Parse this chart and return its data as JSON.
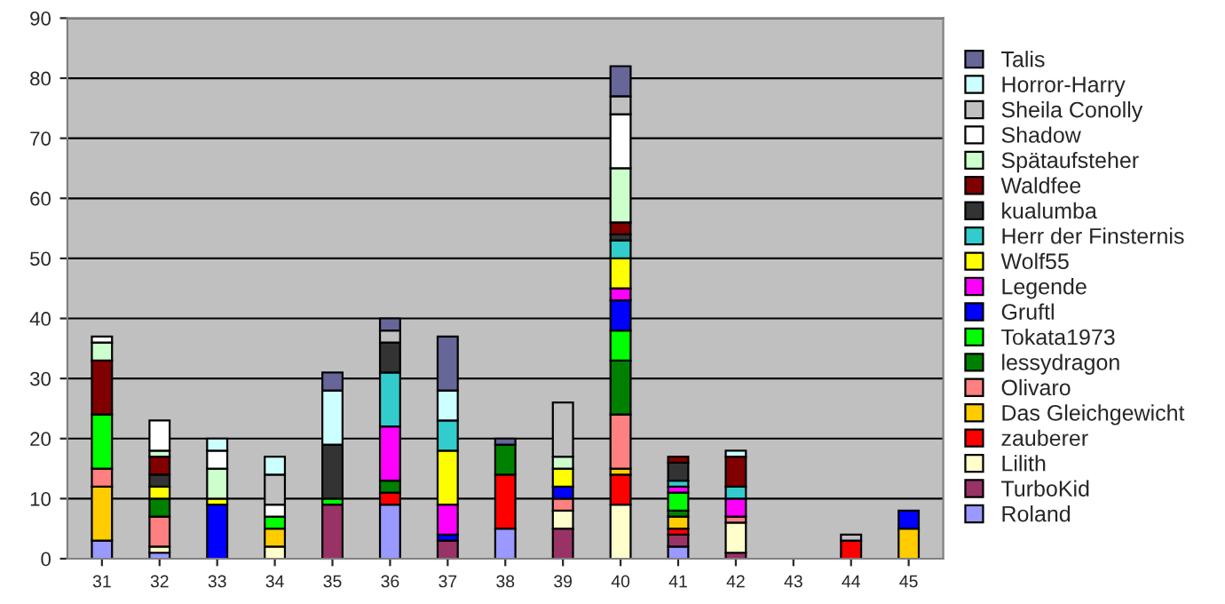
{
  "chart_data": {
    "type": "bar",
    "stacked": true,
    "categories": [
      "31",
      "32",
      "33",
      "34",
      "35",
      "36",
      "37",
      "38",
      "39",
      "40",
      "41",
      "42",
      "43",
      "44",
      "45"
    ],
    "ylim": [
      0,
      90
    ],
    "yticks": [
      0,
      10,
      20,
      30,
      40,
      50,
      60,
      70,
      80,
      90
    ],
    "grid": "y",
    "legend": "right",
    "series": [
      {
        "name": "Roland",
        "color": "#9999ff",
        "values": [
          3,
          1,
          null,
          null,
          null,
          9,
          null,
          5,
          null,
          null,
          2,
          null,
          null,
          null,
          null
        ]
      },
      {
        "name": "TurboKid",
        "color": "#993366",
        "values": [
          null,
          null,
          null,
          null,
          9,
          null,
          3,
          null,
          5,
          null,
          2,
          1,
          null,
          null,
          null
        ]
      },
      {
        "name": "Lilith",
        "color": "#ffffcc",
        "values": [
          null,
          1,
          null,
          2,
          null,
          null,
          null,
          null,
          3,
          9,
          null,
          5,
          null,
          null,
          null
        ]
      },
      {
        "name": "zauberer",
        "color": "#ff0000",
        "values": [
          null,
          null,
          null,
          null,
          null,
          2,
          null,
          9,
          null,
          5,
          1,
          null,
          null,
          3,
          null
        ]
      },
      {
        "name": "Das Gleichgewicht",
        "color": "#ffcc00",
        "values": [
          9,
          null,
          null,
          3,
          null,
          null,
          null,
          null,
          null,
          1,
          2,
          null,
          null,
          null,
          5
        ]
      },
      {
        "name": "Olivaro",
        "color": "#ff8080",
        "values": [
          3,
          5,
          null,
          null,
          null,
          null,
          null,
          null,
          2,
          9,
          null,
          1,
          null,
          null,
          null
        ]
      },
      {
        "name": "lessydragon",
        "color": "#008000",
        "values": [
          null,
          3,
          null,
          null,
          null,
          2,
          null,
          5,
          null,
          9,
          1,
          null,
          null,
          null,
          null
        ]
      },
      {
        "name": "Tokata1973",
        "color": "#00ff00",
        "values": [
          9,
          null,
          null,
          2,
          1,
          null,
          null,
          null,
          null,
          5,
          3,
          null,
          null,
          null,
          null
        ]
      },
      {
        "name": "Gruftl",
        "color": "#0000ff",
        "values": [
          null,
          null,
          9,
          null,
          null,
          null,
          1,
          null,
          2,
          5,
          null,
          null,
          null,
          null,
          3
        ]
      },
      {
        "name": "Legende",
        "color": "#ff00ff",
        "values": [
          null,
          null,
          null,
          null,
          null,
          9,
          5,
          null,
          null,
          2,
          1,
          3,
          null,
          null,
          null
        ]
      },
      {
        "name": "Wolf55",
        "color": "#ffff00",
        "values": [
          null,
          2,
          1,
          null,
          null,
          null,
          9,
          null,
          3,
          5,
          null,
          null,
          null,
          null,
          null
        ]
      },
      {
        "name": "Herr der Finsternis",
        "color": "#33cccc",
        "values": [
          null,
          null,
          null,
          null,
          null,
          9,
          5,
          null,
          null,
          3,
          1,
          2,
          null,
          null,
          null
        ]
      },
      {
        "name": "kualumba",
        "color": "#333333",
        "values": [
          null,
          2,
          null,
          null,
          9,
          5,
          null,
          null,
          null,
          1,
          3,
          null,
          null,
          null,
          null
        ]
      },
      {
        "name": "Waldfee",
        "color": "#800000",
        "values": [
          9,
          3,
          null,
          null,
          null,
          null,
          null,
          null,
          null,
          2,
          1,
          5,
          null,
          null,
          null
        ]
      },
      {
        "name": "Spätaufsteher",
        "color": "#ccffcc",
        "values": [
          3,
          1,
          5,
          null,
          null,
          null,
          null,
          null,
          2,
          9,
          null,
          null,
          null,
          null,
          null
        ]
      },
      {
        "name": "Shadow",
        "color": "#ffffff",
        "values": [
          1,
          5,
          3,
          2,
          null,
          null,
          null,
          null,
          null,
          9,
          null,
          null,
          null,
          null,
          null
        ]
      },
      {
        "name": "Sheila Conolly",
        "color": "#c0c0c0",
        "values": [
          null,
          null,
          null,
          5,
          null,
          2,
          null,
          null,
          9,
          3,
          null,
          null,
          null,
          1,
          null
        ]
      },
      {
        "name": "Horror-Harry",
        "color": "#ccffff",
        "values": [
          null,
          null,
          2,
          3,
          9,
          null,
          5,
          null,
          null,
          null,
          null,
          1,
          null,
          null,
          null
        ]
      },
      {
        "name": "Talis",
        "color": "#666699",
        "values": [
          null,
          null,
          null,
          null,
          3,
          2,
          9,
          1,
          null,
          5,
          null,
          null,
          null,
          null,
          null
        ]
      }
    ]
  }
}
